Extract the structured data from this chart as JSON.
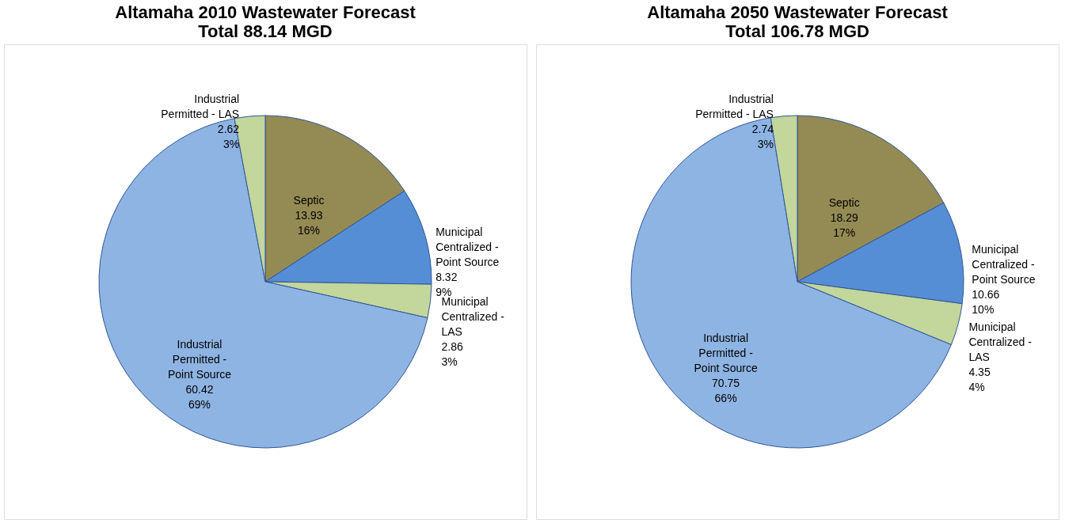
{
  "chart_data": [
    {
      "type": "pie",
      "title": [
        "Altamaha 2010 Wastewater Forecast",
        "Total 88.14 MGD"
      ],
      "categories": [
        "Septic",
        "Municipal Centralized - Point Source",
        "Municipal Centralized - LAS",
        "Industrial Permitted - Point Source",
        "Industrial Permitted - LAS"
      ],
      "values": [
        13.93,
        8.32,
        2.86,
        60.42,
        2.62
      ],
      "colors": [
        "#948a54",
        "#558ed5",
        "#c3d69b",
        "#8eb4e3",
        "#c3d69b"
      ],
      "value_labels": [
        "13.93\n16%",
        "8.32\n9%",
        "2.86\n3%",
        "60.42\n69%",
        "2.62\n3%"
      ],
      "legend": false
    },
    {
      "type": "pie",
      "title": [
        "Altamaha 2050 Wastewater Forecast",
        "Total 106.78 MGD"
      ],
      "categories": [
        "Septic",
        "Municipal Centralized - Point Source",
        "Municipal Centralized - LAS",
        "Industrial Permitted - Point Source",
        "Industrial Permitted - LAS"
      ],
      "values": [
        18.29,
        10.66,
        4.35,
        70.75,
        2.74
      ],
      "colors": [
        "#948a54",
        "#558ed5",
        "#c3d69b",
        "#8eb4e3",
        "#c3d69b"
      ],
      "value_labels": [
        "18.29\n17%",
        "10.66\n10%",
        "4.35\n4%",
        "70.75\n66%",
        "2.74\n3%"
      ],
      "legend": false
    }
  ]
}
